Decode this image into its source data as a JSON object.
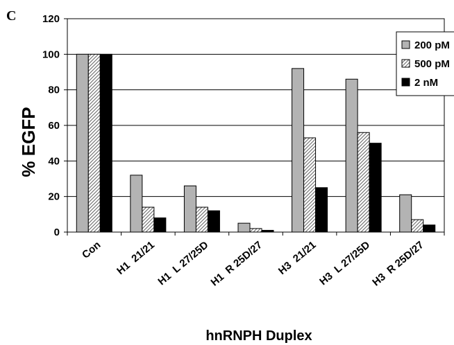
{
  "panel_label": "C",
  "chart_data": {
    "type": "bar",
    "title": "",
    "xlabel": "hnRNPH Duplex",
    "ylabel": "% EGFP",
    "ylim": [
      0,
      120
    ],
    "yticks": [
      0,
      20,
      40,
      60,
      80,
      100,
      120
    ],
    "grid": true,
    "legend_position": "top-right",
    "categories": [
      "Con",
      "H1  21/21",
      "H1  L 27/25D",
      "H1  R 25D/27",
      "H3  21/21",
      "H3  L 27/25D",
      "H3  R 25D/27"
    ],
    "series": [
      {
        "name": "200 pM",
        "fill": "#b3b3b3",
        "pattern": "solid",
        "values": [
          100,
          32,
          26,
          5,
          92,
          86,
          21
        ]
      },
      {
        "name": "500 pM",
        "fill": "#ffffff",
        "pattern": "diagonal-hatch",
        "values": [
          100,
          14,
          14,
          2,
          53,
          56,
          7
        ]
      },
      {
        "name": "2 nM",
        "fill": "#000000",
        "pattern": "solid",
        "values": [
          100,
          8,
          12,
          1,
          25,
          50,
          4
        ]
      }
    ]
  }
}
